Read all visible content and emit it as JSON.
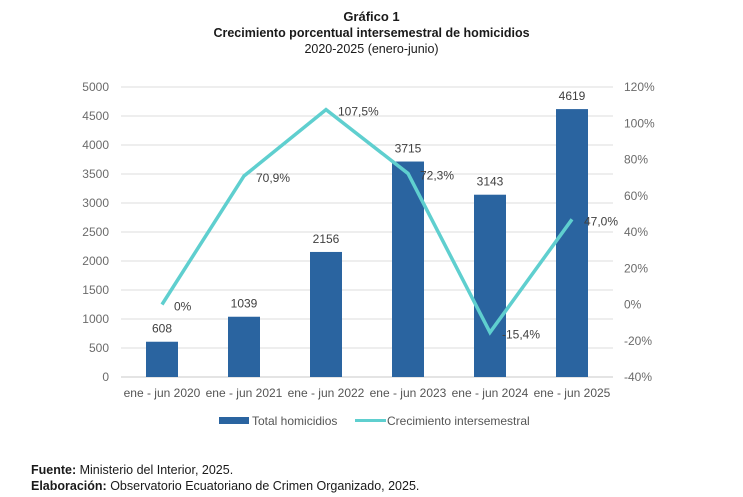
{
  "header": {
    "figure_number": "Gráfico 1",
    "title": "Crecimiento porcentual intersemestral de homicidios",
    "subtitle": "2020-2025 (enero-junio)"
  },
  "chart_data": {
    "type": "bar+line",
    "title": "Crecimiento porcentual intersemestral de homicidios",
    "subtitle": "2020-2025 (enero-junio)",
    "categories": [
      "ene - jun 2020",
      "ene - jun 2021",
      "ene - jun 2022",
      "ene - jun 2023",
      "ene - jun 2024",
      "ene - jun 2025"
    ],
    "series": [
      {
        "name": "Total homicidios",
        "type": "bar",
        "axis": "left",
        "color": "#2a64a0",
        "values": [
          608,
          1039,
          2156,
          3715,
          3143,
          4619
        ],
        "labels": [
          "608",
          "1039",
          "2156",
          "3715",
          "3143",
          "4619"
        ]
      },
      {
        "name": "Crecimiento intersemestral",
        "type": "line",
        "axis": "right",
        "color": "#5fcfcf",
        "values": [
          0,
          70.9,
          107.5,
          72.3,
          -15.4,
          47.0
        ],
        "labels": [
          "0%",
          "70,9%",
          "107,5%",
          "72,3%",
          "-15,4%",
          "47,0%"
        ]
      }
    ],
    "y_left": {
      "label": "",
      "lim": [
        0,
        5000
      ],
      "ticks": [
        0,
        500,
        1000,
        1500,
        2000,
        2500,
        3000,
        3500,
        4000,
        4500,
        5000
      ],
      "tick_labels": [
        "0",
        "500",
        "1000",
        "1500",
        "2000",
        "2500",
        "3000",
        "3500",
        "4000",
        "4500",
        "5000"
      ]
    },
    "y_right": {
      "label": "",
      "lim": [
        -40,
        120
      ],
      "ticks": [
        -40,
        -20,
        0,
        20,
        40,
        60,
        80,
        100,
        120
      ],
      "tick_labels": [
        "-40%",
        "-20%",
        "0%",
        "20%",
        "40%",
        "60%",
        "80%",
        "100%",
        "120%"
      ]
    },
    "xlabel": "",
    "grid": true,
    "legend": {
      "placement": "bottom-center",
      "entries": [
        "Total homicidios",
        "Crecimiento intersemestral"
      ]
    }
  },
  "footer": {
    "source_label": "Fuente:",
    "source_text": " Ministerio del Interior, 2025.",
    "credit_label": "Elaboración:",
    "credit_text": " Observatorio Ecuatoriano de Crimen Organizado, 2025."
  }
}
